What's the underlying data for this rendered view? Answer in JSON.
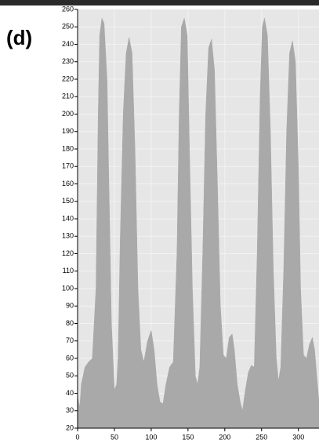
{
  "chart_data": {
    "type": "area",
    "panel_label": "(d)",
    "color": "#a9a9a9",
    "background": "#e6e6e6",
    "grid": true,
    "x": [
      0,
      3,
      5,
      10,
      15,
      20,
      25,
      28,
      30,
      33,
      36,
      40,
      43,
      46,
      50,
      53,
      55,
      58,
      62,
      66,
      70,
      74,
      78,
      82,
      86,
      90,
      95,
      100,
      104,
      108,
      112,
      116,
      120,
      125,
      130,
      135,
      138,
      141,
      145,
      149,
      152,
      156,
      160,
      163,
      166,
      170,
      174,
      178,
      182,
      186,
      190,
      194,
      198,
      202,
      206,
      210,
      213,
      217,
      221,
      224,
      228,
      232,
      236,
      240,
      244,
      248,
      251,
      254,
      258,
      262,
      266,
      270,
      273,
      276,
      280,
      284,
      288,
      292,
      296,
      300,
      303,
      307,
      311,
      315,
      319,
      322,
      325,
      328
    ],
    "values": [
      38,
      32,
      45,
      55,
      58,
      60,
      100,
      200,
      245,
      255,
      252,
      220,
      150,
      80,
      42,
      45,
      60,
      130,
      200,
      235,
      244,
      235,
      180,
      100,
      65,
      58,
      70,
      76,
      65,
      45,
      35,
      34,
      45,
      55,
      58,
      120,
      200,
      250,
      255,
      245,
      180,
      100,
      50,
      45,
      55,
      120,
      200,
      238,
      243,
      225,
      160,
      90,
      62,
      60,
      72,
      74,
      65,
      45,
      35,
      30,
      42,
      52,
      56,
      55,
      120,
      210,
      250,
      255,
      245,
      190,
      110,
      60,
      47,
      55,
      110,
      190,
      235,
      242,
      230,
      170,
      100,
      62,
      60,
      68,
      72,
      65,
      50,
      35
    ],
    "xlim": [
      0,
      328
    ],
    "ylim": [
      20,
      260
    ],
    "xticks": [
      0,
      50,
      100,
      150,
      200,
      250,
      300
    ],
    "yticks": [
      20,
      30,
      40,
      50,
      60,
      70,
      80,
      90,
      100,
      110,
      120,
      130,
      140,
      150,
      160,
      170,
      180,
      190,
      200,
      210,
      220,
      230,
      240,
      250,
      260
    ]
  }
}
